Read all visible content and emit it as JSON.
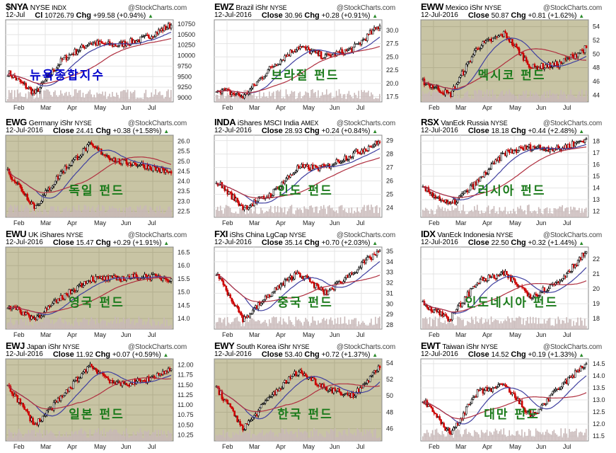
{
  "watermark": "@StockCharts.com",
  "months": [
    "Feb",
    "Mar",
    "Apr",
    "May",
    "Jun",
    "Jul"
  ],
  "colors": {
    "up": "#000000",
    "down": "#cc0000",
    "ma_fast": "#4040a0",
    "ma_slow": "#b03040",
    "fill": "#c8c4a4",
    "volume": "#c8b8b8"
  },
  "chart_data": [
    {
      "type": "candlestick",
      "symbol": "$NYA",
      "name": "NYSE",
      "exchange": "INDX",
      "date": "12-Jul",
      "close_label": "Cl",
      "close": "10726.79",
      "chg": "+99.58 (+0.94%)",
      "label_kr": "뉴욕종합지수",
      "label_color": "#0000cc",
      "filled": false,
      "yticks": [
        "10750",
        "10500",
        "10250",
        "10000",
        "9750",
        "9500",
        "9250",
        "9000"
      ],
      "ylim": [
        8900,
        10850
      ],
      "path": [
        9600,
        9100,
        9900,
        10300,
        10250,
        10400,
        10726
      ]
    },
    {
      "type": "candlestick",
      "symbol": "EWZ",
      "name": "Brazil iShr",
      "exchange": "NYSE",
      "date": "12-Jul-2016",
      "close_label": "Close",
      "close": "30.96",
      "chg": "+0.28 (+0.91%)",
      "label_kr": "브라질 펀드",
      "label_color": "#1a7a1a",
      "filled": false,
      "yticks": [
        "30.0",
        "27.5",
        "25.0",
        "22.5",
        "20.0",
        "17.5"
      ],
      "ylim": [
        16.5,
        32
      ],
      "path": [
        19,
        17.5,
        23,
        27,
        25,
        26.5,
        30.9
      ]
    },
    {
      "type": "candlestick",
      "symbol": "EWW",
      "name": "Mexico iShr",
      "exchange": "NYSE",
      "date": "12-Jul-2016",
      "close_label": "Close",
      "close": "50.87",
      "chg": "+0.81 (+1.62%)",
      "label_kr": "멕시코 펀드",
      "label_color": "#1a7a1a",
      "filled": true,
      "yticks": [
        "54",
        "52",
        "50",
        "48",
        "46",
        "44"
      ],
      "ylim": [
        43,
        55
      ],
      "path": [
        46,
        44,
        51,
        53,
        48,
        48.5,
        50.9
      ]
    },
    {
      "type": "candlestick",
      "symbol": "EWG",
      "name": "Germany iShr",
      "exchange": "NYSE",
      "date": "12-Jul-2016",
      "close_label": "Close",
      "close": "24.41",
      "chg": "+0.38 (+1.58%)",
      "label_kr": "독일 펀드",
      "label_color": "#1a7a1a",
      "filled": true,
      "yticks": [
        "26.0",
        "25.5",
        "25.0",
        "24.5",
        "24.0",
        "23.5",
        "23.0",
        "22.5"
      ],
      "ylim": [
        22.2,
        26.3
      ],
      "path": [
        24.5,
        22.7,
        24.5,
        25.8,
        25,
        24.8,
        24.4
      ]
    },
    {
      "type": "candlestick",
      "symbol": "INDA",
      "name": "iShares MSCI India",
      "exchange": "AMEX",
      "date": "12-Jul-2016",
      "close_label": "Close",
      "close": "28.93",
      "chg": "+0.24 (+0.84%)",
      "label_kr": "인도 펀드",
      "label_color": "#1a7a1a",
      "filled": false,
      "yticks": [
        "29",
        "28",
        "27",
        "26",
        "25",
        "24"
      ],
      "ylim": [
        23.3,
        29.4
      ],
      "path": [
        26,
        24,
        25,
        27,
        27,
        28,
        28.9
      ]
    },
    {
      "type": "candlestick",
      "symbol": "RSX",
      "name": "VanEck Russia",
      "exchange": "NYSE",
      "date": "12-Jul-2016",
      "close_label": "Close",
      "close": "18.18",
      "chg": "+0.44 (+2.48%)",
      "label_kr": "러시아 펀드",
      "label_color": "#1a7a1a",
      "filled": false,
      "yticks": [
        "18",
        "17",
        "16",
        "15",
        "14",
        "13",
        "12"
      ],
      "ylim": [
        11.5,
        18.5
      ],
      "path": [
        14,
        12.5,
        14.5,
        17,
        17.5,
        17.3,
        18.2
      ]
    },
    {
      "type": "candlestick",
      "symbol": "EWU",
      "name": "UK iShares",
      "exchange": "NYSE",
      "date": "12-Jul-2016",
      "close_label": "Close",
      "close": "15.47",
      "chg": "+0.29 (+1.91%)",
      "label_kr": "영국 펀드",
      "label_color": "#1a7a1a",
      "filled": true,
      "yticks": [
        "16.5",
        "16.0",
        "15.5",
        "15.0",
        "14.5",
        "14.0"
      ],
      "ylim": [
        13.6,
        16.7
      ],
      "path": [
        14.5,
        14,
        14.8,
        15.5,
        15.5,
        15.6,
        15.5
      ]
    },
    {
      "type": "candlestick",
      "symbol": "FXI",
      "name": "iShs China LgCap",
      "exchange": "NYSE",
      "date": "12-Jul-2016",
      "close_label": "Close",
      "close": "35.14",
      "chg": "+0.70 (+2.03%)",
      "label_kr": "중국 펀드",
      "label_color": "#1a7a1a",
      "filled": false,
      "yticks": [
        "35",
        "34",
        "33",
        "32",
        "31",
        "30",
        "29",
        "28"
      ],
      "ylim": [
        27.6,
        35.4
      ],
      "path": [
        33,
        28.5,
        31,
        33,
        31,
        33,
        35.1
      ]
    },
    {
      "type": "candlestick",
      "symbol": "IDX",
      "name": "VanEck Indonesia",
      "exchange": "NYSE",
      "date": "12-Jul-2016",
      "close_label": "Close",
      "close": "22.50",
      "chg": "+0.32 (+1.44%)",
      "label_kr": "인도네시아 펀드",
      "label_color": "#1a7a1a",
      "filled": false,
      "yticks": [
        "22",
        "21",
        "20",
        "19",
        "18"
      ],
      "ylim": [
        17.3,
        22.8
      ],
      "path": [
        19,
        18,
        20.5,
        21,
        19.5,
        20.5,
        22.5
      ]
    },
    {
      "type": "candlestick",
      "symbol": "EWJ",
      "name": "Japan iShr",
      "exchange": "NYSE",
      "date": "12-Jul-2016",
      "close_label": "Close",
      "close": "11.92",
      "chg": "+0.07 (+0.59%)",
      "label_kr": "일본 펀드",
      "label_color": "#1a7a1a",
      "filled": true,
      "yticks": [
        "12.00",
        "11.75",
        "11.50",
        "11.25",
        "11.00",
        "10.75",
        "10.50",
        "10.25"
      ],
      "ylim": [
        10.1,
        12.15
      ],
      "path": [
        11.5,
        10.5,
        11.2,
        12.0,
        11.5,
        11.6,
        11.9
      ]
    },
    {
      "type": "candlestick",
      "symbol": "EWY",
      "name": "South Korea iShr",
      "exchange": "NYSE",
      "date": "12-Jul-2016",
      "close_label": "Close",
      "close": "53.40",
      "chg": "+0.72 (+1.37%)",
      "label_kr": "한국 펀드",
      "label_color": "#1a7a1a",
      "filled": true,
      "yticks": [
        "54",
        "52",
        "50",
        "48",
        "46"
      ],
      "ylim": [
        44.5,
        54.5
      ],
      "path": [
        51,
        46,
        50,
        53,
        51,
        50,
        53.4
      ]
    },
    {
      "type": "candlestick",
      "symbol": "EWT",
      "name": "Taiwan iShr",
      "exchange": "NYSE",
      "date": "12-Jul-2016",
      "close_label": "Close",
      "close": "14.52",
      "chg": "+0.19 (+1.33%)",
      "label_kr": "대만 펀드",
      "label_color": "#1a7a1a",
      "filled": false,
      "yticks": [
        "14.5",
        "14.0",
        "13.5",
        "13.0",
        "12.5",
        "12.0",
        "11.5"
      ],
      "ylim": [
        11.3,
        14.7
      ],
      "path": [
        13,
        11.6,
        13.3,
        13.6,
        12.3,
        13.5,
        14.5
      ]
    }
  ]
}
